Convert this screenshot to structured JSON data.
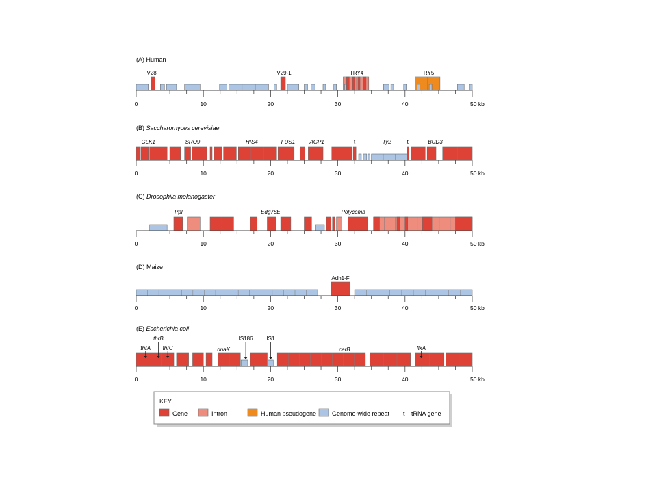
{
  "colors": {
    "gene": "#de4237",
    "intron": "#ee8c7e",
    "pseudogene": "#ef8a1e",
    "repeat": "#adc5e4",
    "edge": "#555555"
  },
  "scale": {
    "tick_labels": [
      "0",
      "10",
      "20",
      "30",
      "40",
      "50 kb"
    ]
  },
  "panels": [
    {
      "id": "human",
      "title_prefix": "(A) ",
      "title": "Human",
      "italic": false,
      "labels": [
        {
          "text": "V28",
          "pos": 2.3,
          "italic": false
        },
        {
          "text": "V29-1",
          "pos": 22.0,
          "italic": false
        },
        {
          "text": "TRY4",
          "pos": 32.8,
          "italic": false
        },
        {
          "text": "TRY5",
          "pos": 43.3,
          "italic": false
        }
      ],
      "blocks": [
        {
          "s": 0.0,
          "e": 1.8,
          "t": "repeat",
          "h": "short"
        },
        {
          "s": 2.2,
          "e": 2.8,
          "t": "gene",
          "h": "tall"
        },
        {
          "s": 3.6,
          "e": 4.2,
          "t": "repeat",
          "h": "short"
        },
        {
          "s": 4.5,
          "e": 6.0,
          "t": "repeat",
          "h": "short"
        },
        {
          "s": 7.2,
          "e": 9.5,
          "t": "repeat",
          "h": "short"
        },
        {
          "s": 12.4,
          "e": 13.5,
          "t": "repeat",
          "h": "short"
        },
        {
          "s": 13.8,
          "e": 19.7,
          "t": "repeat",
          "h": "short"
        },
        {
          "s": 20.5,
          "e": 20.9,
          "t": "repeat",
          "h": "short"
        },
        {
          "s": 21.5,
          "e": 22.2,
          "t": "gene",
          "h": "tall"
        },
        {
          "s": 22.5,
          "e": 24.2,
          "t": "repeat",
          "h": "short"
        },
        {
          "s": 25.0,
          "e": 25.5,
          "t": "repeat",
          "h": "short"
        },
        {
          "s": 26.0,
          "e": 26.6,
          "t": "repeat",
          "h": "short"
        },
        {
          "s": 27.8,
          "e": 28.2,
          "t": "repeat",
          "h": "short"
        },
        {
          "s": 29.4,
          "e": 29.8,
          "t": "repeat",
          "h": "short"
        },
        {
          "s": 30.8,
          "e": 34.6,
          "t": "intron",
          "h": "tall"
        },
        {
          "s": 31.3,
          "e": 31.7,
          "t": "gene",
          "h": "tall"
        },
        {
          "s": 32.2,
          "e": 32.5,
          "t": "gene",
          "h": "tall"
        },
        {
          "s": 33.0,
          "e": 33.3,
          "t": "gene",
          "h": "tall"
        },
        {
          "s": 33.8,
          "e": 34.2,
          "t": "gene",
          "h": "tall"
        },
        {
          "s": 31.0,
          "e": 31.3,
          "t": "repeat",
          "h": "short"
        },
        {
          "s": 36.8,
          "e": 37.6,
          "t": "repeat",
          "h": "short"
        },
        {
          "s": 37.9,
          "e": 38.3,
          "t": "repeat",
          "h": "short"
        },
        {
          "s": 39.8,
          "e": 40.2,
          "t": "repeat",
          "h": "short"
        },
        {
          "s": 41.5,
          "e": 45.2,
          "t": "pseudogene",
          "h": "tall"
        },
        {
          "s": 41.8,
          "e": 42.2,
          "t": "repeat",
          "h": "short"
        },
        {
          "s": 43.6,
          "e": 44.0,
          "t": "repeat",
          "h": "short"
        },
        {
          "s": 47.8,
          "e": 48.8,
          "t": "repeat",
          "h": "short"
        },
        {
          "s": 49.6,
          "e": 50.0,
          "t": "repeat",
          "h": "short"
        }
      ]
    },
    {
      "id": "yeast",
      "title_prefix": "(B) ",
      "title": "Saccharomyces cerevisiae",
      "italic": true,
      "labels": [
        {
          "text": "GLK1",
          "pos": 1.8,
          "italic": true
        },
        {
          "text": "SRO9",
          "pos": 8.4,
          "italic": true
        },
        {
          "text": "HIS4",
          "pos": 17.2,
          "italic": true
        },
        {
          "text": "FUS1",
          "pos": 22.6,
          "italic": true
        },
        {
          "text": "AGP1",
          "pos": 26.9,
          "italic": true
        },
        {
          "text": "t",
          "pos": 32.5,
          "italic": false
        },
        {
          "text": "Ty2",
          "pos": 37.3,
          "italic": true
        },
        {
          "text": "t",
          "pos": 40.4,
          "italic": false
        },
        {
          "text": "BUD3",
          "pos": 44.5,
          "italic": true
        }
      ],
      "blocks": [
        {
          "s": 0.0,
          "e": 0.5,
          "t": "gene",
          "h": "tall"
        },
        {
          "s": 0.7,
          "e": 1.8,
          "t": "gene",
          "h": "tall"
        },
        {
          "s": 2.0,
          "e": 4.6,
          "t": "gene",
          "h": "tall"
        },
        {
          "s": 5.0,
          "e": 6.6,
          "t": "gene",
          "h": "tall"
        },
        {
          "s": 7.2,
          "e": 8.1,
          "t": "gene",
          "h": "tall"
        },
        {
          "s": 8.3,
          "e": 10.5,
          "t": "gene",
          "h": "tall"
        },
        {
          "s": 11.0,
          "e": 11.3,
          "t": "gene",
          "h": "tall"
        },
        {
          "s": 11.6,
          "e": 12.8,
          "t": "gene",
          "h": "tall"
        },
        {
          "s": 13.0,
          "e": 14.9,
          "t": "gene",
          "h": "tall"
        },
        {
          "s": 15.2,
          "e": 20.9,
          "t": "gene",
          "h": "tall"
        },
        {
          "s": 21.1,
          "e": 23.5,
          "t": "gene",
          "h": "tall"
        },
        {
          "s": 24.4,
          "e": 25.1,
          "t": "gene",
          "h": "tall"
        },
        {
          "s": 25.6,
          "e": 27.8,
          "t": "gene",
          "h": "tall"
        },
        {
          "s": 29.1,
          "e": 32.1,
          "t": "gene",
          "h": "tall"
        },
        {
          "s": 32.3,
          "e": 32.7,
          "t": "gene",
          "h": "tall"
        },
        {
          "s": 33.1,
          "e": 33.5,
          "t": "repeat",
          "h": "short"
        },
        {
          "s": 33.8,
          "e": 34.3,
          "t": "repeat",
          "h": "short"
        },
        {
          "s": 34.5,
          "e": 34.8,
          "t": "repeat",
          "h": "short"
        },
        {
          "s": 35.0,
          "e": 40.3,
          "t": "repeat",
          "h": "short"
        },
        {
          "s": 40.3,
          "e": 40.6,
          "t": "gene",
          "h": "tall"
        },
        {
          "s": 40.9,
          "e": 43.0,
          "t": "gene",
          "h": "tall"
        },
        {
          "s": 43.3,
          "e": 44.6,
          "t": "gene",
          "h": "tall"
        },
        {
          "s": 45.6,
          "e": 50.0,
          "t": "gene",
          "h": "tall"
        }
      ]
    },
    {
      "id": "drosophila",
      "title_prefix": "(C) ",
      "title": "Drosophila melanogaster",
      "italic": true,
      "labels": [
        {
          "text": "Ppl",
          "pos": 6.3,
          "italic": true
        },
        {
          "text": "Edg78E",
          "pos": 20.0,
          "italic": true
        },
        {
          "text": "Polycomb",
          "pos": 32.3,
          "italic": true
        }
      ],
      "blocks": [
        {
          "s": 2.0,
          "e": 4.6,
          "t": "repeat",
          "h": "short"
        },
        {
          "s": 5.6,
          "e": 6.9,
          "t": "gene",
          "h": "tall"
        },
        {
          "s": 7.6,
          "e": 9.5,
          "t": "intron",
          "h": "tall"
        },
        {
          "s": 11.0,
          "e": 14.5,
          "t": "gene",
          "h": "tall"
        },
        {
          "s": 17.0,
          "e": 18.0,
          "t": "gene",
          "h": "tall"
        },
        {
          "s": 19.5,
          "e": 20.8,
          "t": "gene",
          "h": "tall"
        },
        {
          "s": 21.5,
          "e": 23.0,
          "t": "gene",
          "h": "tall"
        },
        {
          "s": 25.0,
          "e": 26.1,
          "t": "gene",
          "h": "tall"
        },
        {
          "s": 26.7,
          "e": 28.0,
          "t": "repeat",
          "h": "short"
        },
        {
          "s": 28.3,
          "e": 29.0,
          "t": "gene",
          "h": "tall"
        },
        {
          "s": 29.2,
          "e": 29.6,
          "t": "gene",
          "h": "tall"
        },
        {
          "s": 29.8,
          "e": 30.6,
          "t": "intron",
          "h": "tall"
        },
        {
          "s": 31.5,
          "e": 34.4,
          "t": "gene",
          "h": "tall"
        },
        {
          "s": 35.3,
          "e": 50.0,
          "t": "intron",
          "h": "tall"
        },
        {
          "s": 35.4,
          "e": 36.2,
          "t": "gene",
          "h": "tall"
        },
        {
          "s": 38.8,
          "e": 39.2,
          "t": "gene",
          "h": "tall"
        },
        {
          "s": 40.0,
          "e": 40.4,
          "t": "gene",
          "h": "tall"
        },
        {
          "s": 42.6,
          "e": 44.0,
          "t": "gene",
          "h": "tall"
        },
        {
          "s": 47.5,
          "e": 50.0,
          "t": "gene",
          "h": "tall"
        }
      ]
    },
    {
      "id": "maize",
      "title_prefix": "(D) ",
      "title": "Maize",
      "italic": false,
      "labels": [
        {
          "text": "Adh1-F",
          "pos": 30.4,
          "italic": false
        }
      ],
      "blocks": [
        {
          "s": 0.0,
          "e": 27.0,
          "t": "repeat",
          "h": "short"
        },
        {
          "s": 29.0,
          "e": 31.8,
          "t": "gene",
          "h": "tall"
        },
        {
          "s": 32.5,
          "e": 50.0,
          "t": "repeat",
          "h": "short"
        }
      ]
    },
    {
      "id": "ecoli",
      "title_prefix": "(E) ",
      "title": "Escherichia coli",
      "italic": true,
      "labels": [
        {
          "text": "thrA",
          "pos": 1.4,
          "italic": true
        },
        {
          "text": "thrB",
          "pos": 3.3,
          "italic": true
        },
        {
          "text": "thrC",
          "pos": 4.7,
          "italic": true
        },
        {
          "text": "dnaK",
          "pos": 13.0,
          "italic": true
        },
        {
          "text": "IS186",
          "pos": 16.3,
          "italic": false
        },
        {
          "text": "IS1",
          "pos": 20.0,
          "italic": false
        },
        {
          "text": "carB",
          "pos": 31.0,
          "italic": true
        },
        {
          "text": "flxA",
          "pos": 42.4,
          "italic": true
        }
      ],
      "blocks": [
        {
          "s": 0.0,
          "e": 5.6,
          "t": "gene",
          "h": "tall"
        },
        {
          "s": 6.0,
          "e": 7.8,
          "t": "gene",
          "h": "tall"
        },
        {
          "s": 8.4,
          "e": 10.0,
          "t": "gene",
          "h": "tall"
        },
        {
          "s": 10.4,
          "e": 11.3,
          "t": "gene",
          "h": "tall"
        },
        {
          "s": 12.2,
          "e": 15.5,
          "t": "gene",
          "h": "tall"
        },
        {
          "s": 15.6,
          "e": 16.6,
          "t": "repeat",
          "h": "short"
        },
        {
          "s": 17.0,
          "e": 19.5,
          "t": "gene",
          "h": "tall"
        },
        {
          "s": 19.6,
          "e": 20.4,
          "t": "repeat",
          "h": "short"
        },
        {
          "s": 21.0,
          "e": 34.1,
          "t": "gene",
          "h": "tall"
        },
        {
          "s": 34.8,
          "e": 40.8,
          "t": "gene",
          "h": "tall"
        },
        {
          "s": 41.5,
          "e": 45.8,
          "t": "gene",
          "h": "tall"
        },
        {
          "s": 46.1,
          "e": 50.0,
          "t": "gene",
          "h": "tall"
        }
      ],
      "arrows": [
        1.4,
        3.3,
        4.7,
        16.3,
        20.0,
        42.4
      ]
    }
  ],
  "key": {
    "title": "KEY",
    "items": [
      {
        "type": "gene",
        "label": "Gene"
      },
      {
        "type": "intron",
        "label": "Intron"
      },
      {
        "type": "pseudogene",
        "label": "Human pseudogene"
      },
      {
        "type": "repeat",
        "label": "Genome-wide repeat"
      }
    ],
    "trna_symbol": "t",
    "trna_label": "tRNA gene"
  }
}
